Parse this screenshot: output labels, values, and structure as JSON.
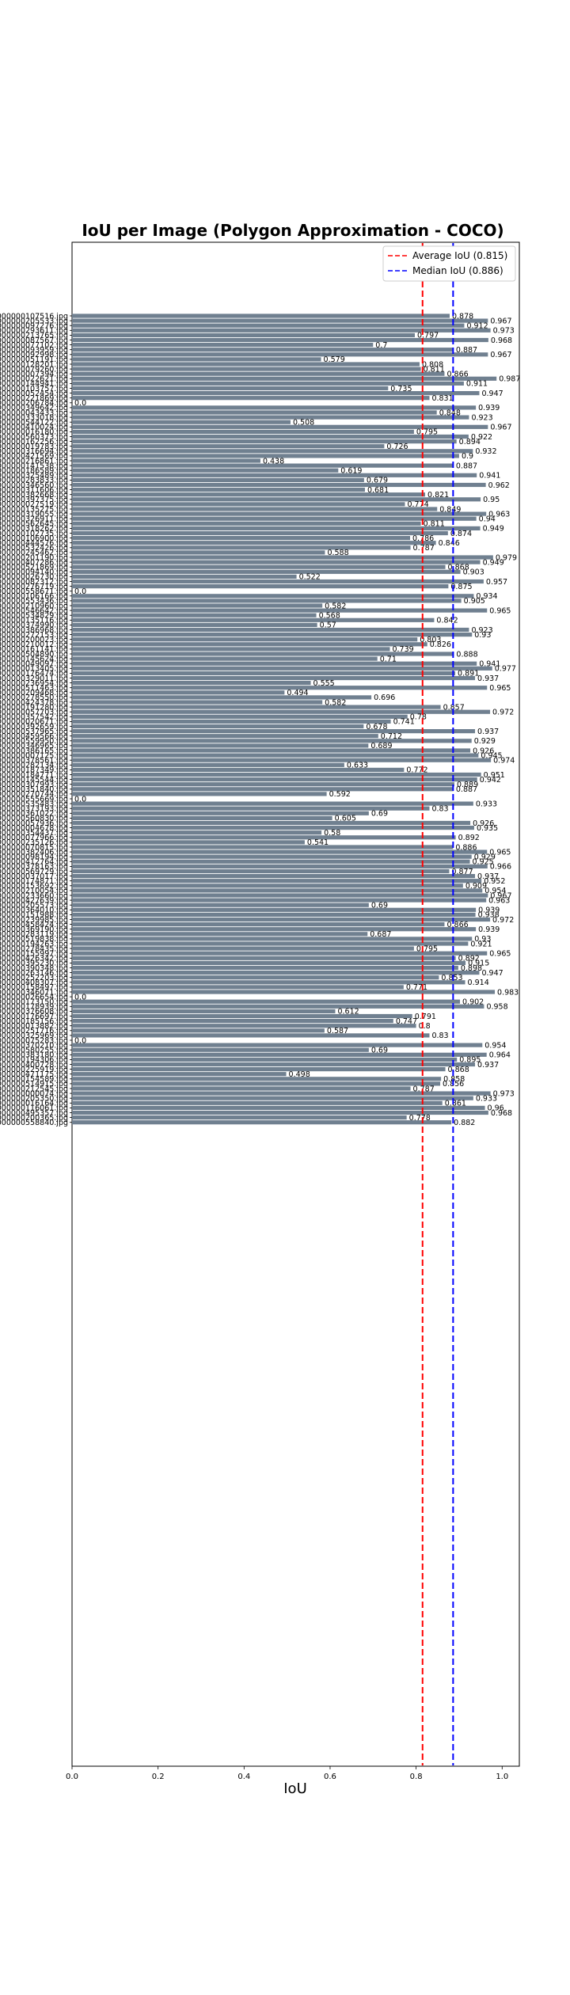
{
  "chart_data": {
    "type": "bar",
    "orientation": "horizontal",
    "title": "IoU per Image (Polygon Approximation - COCO)",
    "xlabel": "IoU",
    "ylabel": "",
    "xlim": [
      0.0,
      1.04
    ],
    "xticks": [
      "0.0",
      "0.2",
      "0.4",
      "0.6",
      "0.8",
      "1.0"
    ],
    "bar_color": "#708090",
    "legend_position": "top-right",
    "reference_lines": [
      {
        "label": "Average IoU (0.815)",
        "value": 0.815,
        "color": "#ff0000",
        "style": "dashed"
      },
      {
        "label": "Median IoU (0.886)",
        "value": 0.886,
        "color": "#0000ff",
        "style": "dashed"
      }
    ],
    "categories": [
      "000000107516.jpg",
      "000000205533.jpg",
      "000000097276.jpg",
      "000000293611.jpg",
      "000000213765.jpg",
      "000000087567.jpg",
      "000000077102.jpg",
      "000000093959.jpg",
      "000000092998.jpg",
      "000000051191.jpg",
      "000000128201.jpg",
      "000000079260.jpg",
      "000000007394.jpg",
      "000000022621.jpg",
      "000000144941.jpg",
      "000000103757.jpg",
      "000000052454.jpg",
      "000000221869.jpg",
      "000000206784.jpg",
      "000000349642.jpg",
      "000000043433.jpg",
      "000000333018.jpg",
      "000000544122.jpg",
      "000000410024.jpg",
      "000000016180.jpg",
      "000000560373.jpg",
      "000000162256.jpg",
      "000000019783.jpg",
      "000000316694.jpg",
      "000000421569.jpg",
      "000000216861.jpg",
      "000000141538.jpg",
      "000000186589.jpg",
      "000000325489.jpg",
      "000000283833.jpg",
      "000000346560.jpg",
      "000000311606.jpg",
      "000000382668.jpg",
      "000000397375.jpg",
      "000000027519.jpg",
      "000000135275.jpg",
      "000000319055.jpg",
      "000000326911.jpg",
      "000000562645.jpg",
      "000000318262.jpg",
      "000000102735.jpg",
      "000000106900.jpg",
      "000000444576.jpg",
      "000000532426.jpg",
      "000000245462.jpg",
      "000000201190.jpg",
      "000000407286.jpg",
      "000000521869.jpg",
      "000000094140.jpg",
      "000000026730.jpg",
      "000000082312.jpg",
      "000000276719.jpg",
      "000000558671.jpg",
      "000000106166.jpg",
      "000000553436.jpg",
      "000000210960.jpg",
      "000000546642.jpg",
      "000000534829.jpg",
      "000000135116.jpg",
      "000000374990.jpg",
      "000000386968.jpg",
      "000000272153.jpg",
      "000000200023.jpg",
      "000000210012.jpg",
      "000000161141.jpg",
      "000000504890.jpg",
      "000000145624.jpg",
      "000000049097.jpg",
      "000000013405.jpg",
      "000000176474.jpg",
      "000000329011.jpg",
      "000000236954.jpg",
      "000000511463.jpg",
      "000000209468.jpg",
      "000000278550.jpg",
      "000000424378.jpg",
      "000000191280.jpg",
      "000000057703.jpg",
      "000000357542.jpg",
      "000000020671.jpg",
      "000000392659.jpg",
      "000000537965.jpg",
      "000000459566.jpg",
      "000000559950.jpg",
      "000000346965.jpg",
      "000000386165.jpg",
      "000000007125.jpg",
      "000000378561.jpg",
      "000000282134.jpg",
      "000000187349.jpg",
      "000000184771.jpg",
      "000000145544.jpg",
      "000000307993.jpg",
      "000000351840.jpg",
      "000000270744.jpg",
      "000000555669.jpg",
      "000000535483.jpg",
      "000000373193.jpg",
      "000000361022.jpg",
      "000000560830.jpg",
      "000000057936.jpg",
      "000000004678.jpg",
      "000000354437.jpg",
      "000000077966.jpg",
      "000000235126.jpg",
      "000000070815.jpg",
      "000000382406.jpg",
      "000000098194.jpg",
      "000000412764.jpg",
      "000000378163.jpg",
      "000000569729.jpg",
      "000000037017.jpg",
      "000000174871.jpg",
      "000000153692.jpg",
      "000000210054.jpg",
      "000000233660.jpg",
      "000000427639.jpg",
      "000000205573.jpg",
      "000000364010.jpg",
      "000000151988.jpg",
      "000000239985.jpg",
      "000000458424.jpg",
      "000000369190.jpg",
      "000000283119.jpg",
      "000000519838.jpg",
      "000000194263.jpg",
      "000000278435.jpg",
      "000000155997.jpg",
      "000000426342.jpg",
      "000000395230.jpg",
      "000000390348.jpg",
      "000000263146.jpg",
      "000000252203.jpg",
      "000000408307.jpg",
      "000000158497.jpg",
      "000000346071.jpg",
      "000000026654.jpg",
      "000000173150.jpg",
      "000000178939.jpg",
      "000000376608.jpg",
      "000000176697.jpg",
      "000000185156.jpg",
      "000000013882.jpg",
      "000000251716.jpg",
      "000000325969.jpg",
      "000000075283.jpg",
      "000000370210.jpg",
      "000000580255.jpg",
      "000000383180.jpg",
      "000000194306.jpg",
      "000000400728.jpg",
      "000000225919.jpg",
      "000000471175.jpg",
      "000000154589.jpg",
      "000000514915.jpg",
      "000000212545.jpg",
      "000000000074.jpg",
      "000000205350.jpg",
      "000000016164.jpg",
      "000000116061.jpg",
      "000000495357.jpg",
      "000000200365.jpg",
      "000000558840.jpg"
    ],
    "values": [
      0.878,
      0.967,
      0.912,
      0.973,
      0.797,
      0.968,
      0.7,
      0.887,
      0.967,
      0.579,
      0.808,
      0.811,
      0.866,
      0.987,
      0.911,
      0.735,
      0.947,
      0.831,
      0.0,
      0.939,
      0.848,
      0.923,
      0.508,
      0.967,
      0.795,
      0.922,
      0.894,
      0.726,
      0.932,
      0.9,
      0.438,
      0.887,
      0.619,
      0.941,
      0.679,
      0.962,
      0.681,
      0.821,
      0.95,
      0.774,
      0.849,
      0.963,
      0.94,
      0.811,
      0.949,
      0.874,
      0.786,
      0.846,
      0.787,
      0.588,
      0.979,
      0.949,
      0.868,
      0.903,
      0.522,
      0.957,
      0.875,
      0.0,
      0.934,
      0.905,
      0.582,
      0.965,
      0.568,
      0.842,
      0.57,
      0.923,
      0.93,
      0.803,
      0.826,
      0.739,
      0.888,
      0.71,
      0.941,
      0.977,
      0.891,
      0.937,
      0.555,
      0.965,
      0.494,
      0.696,
      0.582,
      0.857,
      0.972,
      0.78,
      0.741,
      0.678,
      0.937,
      0.712,
      0.929,
      0.689,
      0.926,
      0.945,
      0.974,
      0.633,
      0.772,
      0.951,
      0.942,
      0.889,
      0.887,
      0.592,
      0.0,
      0.933,
      0.831,
      0.69,
      0.605,
      0.926,
      0.935,
      0.58,
      0.892,
      0.541,
      0.886,
      0.965,
      0.929,
      0.925,
      0.966,
      0.877,
      0.937,
      0.952,
      0.909,
      0.954,
      0.967,
      0.963,
      0.69,
      0.939,
      0.938,
      0.972,
      0.866,
      0.939,
      0.687,
      0.93,
      0.921,
      0.795,
      0.965,
      0.892,
      0.915,
      0.898,
      0.947,
      0.853,
      0.914,
      0.771,
      0.983,
      0.0,
      0.902,
      0.958,
      0.612,
      0.791,
      0.747,
      0.8,
      0.587,
      0.831,
      0.0,
      0.954,
      0.69,
      0.964,
      0.895,
      0.937,
      0.868,
      0.498,
      0.858,
      0.856,
      0.787,
      0.973,
      0.933,
      0.861,
      0.96,
      0.968,
      0.778,
      0.882
    ],
    "value_labels": [
      "0.878",
      "0.967",
      "0.912",
      "0.973",
      "0.797",
      "0.968",
      "0.7",
      "0.887",
      "0.967",
      "0.579",
      "0.808",
      "0.811",
      "0.866",
      "0.987",
      "0.911",
      "0.735",
      "0.947",
      "0.831",
      "0.0",
      "0.939",
      "0.848",
      "0.923",
      "0.508",
      "0.967",
      "0.795",
      "0.922",
      "0.894",
      "0.726",
      "0.932",
      "0.9",
      "0.438",
      "0.887",
      "0.619",
      "0.941",
      "0.679",
      "0.962",
      "0.681",
      "0.821",
      "0.95",
      "0.774",
      "0.849",
      "0.963",
      "0.94",
      "0.811",
      "0.949",
      "0.874",
      "0.786",
      "0.846",
      "0.787",
      "0.588",
      "0.979",
      "0.949",
      "0.868",
      "0.903",
      "0.522",
      "0.957",
      "0.875",
      "0.0",
      "0.934",
      "0.905",
      "0.582",
      "0.965",
      "0.568",
      "0.842",
      "0.57",
      "0.923",
      "0.93",
      "0.803",
      "0.826",
      "0.739",
      "0.888",
      "0.71",
      "0.941",
      "0.977",
      "0.891",
      "0.937",
      "0.555",
      "0.965",
      "0.494",
      "0.696",
      "0.582",
      "0.857",
      "0.972",
      "0.78",
      "0.741",
      "0.678",
      "0.937",
      "0.712",
      "0.929",
      "0.689",
      "0.926",
      "0.945",
      "0.974",
      "0.633",
      "0.772",
      "0.951",
      "0.942",
      "0.889",
      "0.887",
      "0.592",
      "0.0",
      "0.933",
      "0.83",
      "0.69",
      "0.605",
      "0.926",
      "0.935",
      "0.58",
      "0.892",
      "0.541",
      "0.886",
      "0.965",
      "0.929",
      "0.925",
      "0.966",
      "0.877",
      "0.937",
      "0.952",
      "0.909",
      "0.954",
      "0.967",
      "0.963",
      "0.69",
      "0.939",
      "0.938",
      "0.972",
      "0.866",
      "0.939",
      "0.687",
      "0.93",
      "0.921",
      "0.795",
      "0.965",
      "0.892",
      "0.915",
      "0.898",
      "0.947",
      "0.853",
      "0.914",
      "0.771",
      "0.983",
      "0.0",
      "0.902",
      "0.958",
      "0.612",
      "0.791",
      "0.747",
      "0.8",
      "0.587",
      "0.83",
      "0.0",
      "0.954",
      "0.69",
      "0.964",
      "0.895",
      "0.937",
      "0.868",
      "0.498",
      "0.858",
      "0.856",
      "0.787",
      "0.973",
      "0.933",
      "0.861",
      "0.96",
      "0.968",
      "0.778",
      "0.882"
    ]
  }
}
